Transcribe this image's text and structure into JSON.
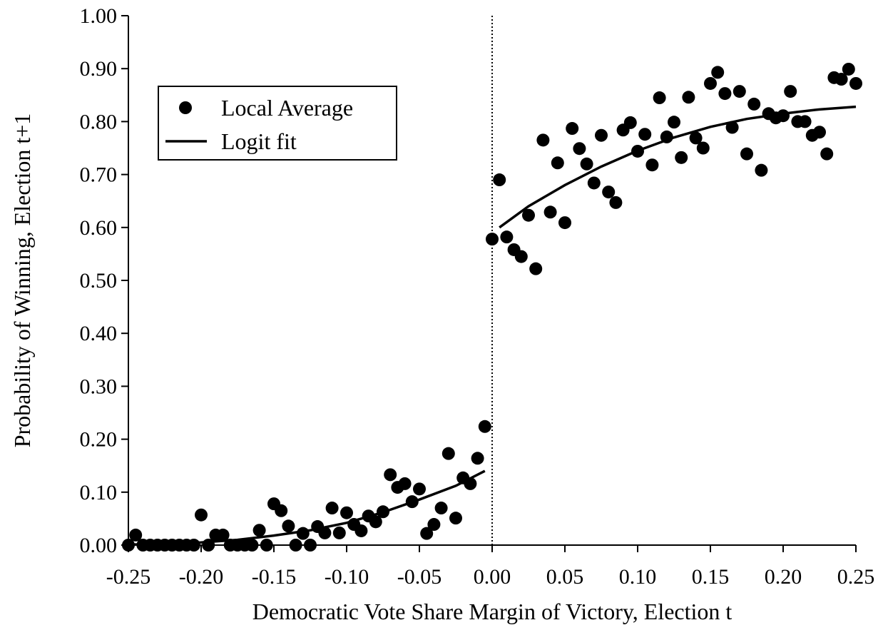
{
  "chart_data": {
    "type": "scatter",
    "xlabel": "Democratic Vote Share Margin of Victory, Election t",
    "ylabel": "Probability of Winning, Election t+1",
    "xlim": [
      -0.25,
      0.25
    ],
    "ylim": [
      0,
      1
    ],
    "xticks": [
      -0.25,
      {
        "value": -0.2,
        "label": "-0.20"
      },
      -0.15,
      {
        "value": -0.1,
        "label": "-0.10"
      },
      -0.05,
      {
        "value": 0,
        "label": "0.00"
      },
      0.05,
      {
        "value": 0.1,
        "label": "0.10"
      },
      0.15,
      {
        "value": 0.2,
        "label": "0.20"
      },
      0.25
    ],
    "yticks": [
      {
        "value": 0,
        "label": "0.00"
      },
      {
        "value": 0.1,
        "label": "0.10"
      },
      {
        "value": 0.2,
        "label": "0.20"
      },
      {
        "value": 0.3,
        "label": "0.30"
      },
      {
        "value": 0.4,
        "label": "0.40"
      },
      {
        "value": 0.5,
        "label": "0.50"
      },
      {
        "value": 0.6,
        "label": "0.60"
      },
      {
        "value": 0.7,
        "label": "0.70"
      },
      {
        "value": 0.8,
        "label": "0.80"
      },
      {
        "value": 0.9,
        "label": "0.90"
      },
      {
        "value": 1,
        "label": "1.00"
      }
    ],
    "vline": 0,
    "legend": "upper left",
    "series": [
      {
        "name": "Local Average",
        "type": "scatter",
        "color": "#000000",
        "x": [
          -0.25,
          -0.245,
          -0.24,
          -0.235,
          -0.23,
          -0.225,
          -0.22,
          -0.215,
          -0.21,
          -0.205,
          -0.2,
          -0.195,
          -0.19,
          -0.185,
          -0.18,
          -0.175,
          -0.17,
          -0.165,
          -0.16,
          -0.155,
          -0.15,
          -0.145,
          -0.14,
          -0.135,
          -0.13,
          -0.125,
          -0.12,
          -0.115,
          -0.11,
          -0.105,
          -0.1,
          -0.095,
          -0.09,
          -0.085,
          -0.08,
          -0.075,
          -0.07,
          -0.065,
          -0.06,
          -0.055,
          -0.05,
          -0.045,
          -0.04,
          -0.035,
          -0.03,
          -0.025,
          -0.02,
          -0.015,
          -0.01,
          -0.005,
          0,
          0.005,
          0.01,
          0.015,
          0.02,
          0.025,
          0.03,
          0.035,
          0.04,
          0.045,
          0.05,
          0.055,
          0.06,
          0.065,
          0.07,
          0.075,
          0.08,
          0.085,
          0.09,
          0.095,
          0.1,
          0.105,
          0.11,
          0.115,
          0.12,
          0.125,
          0.13,
          0.135,
          0.14,
          0.145,
          0.15,
          0.155,
          0.16,
          0.165,
          0.17,
          0.175,
          0.18,
          0.185,
          0.19,
          0.195,
          0.2,
          0.205,
          0.21,
          0.215,
          0.22,
          0.225,
          0.23,
          0.235,
          0.24,
          0.245,
          0.25
        ],
        "values": [
          0,
          0.019,
          0,
          0,
          0,
          0,
          0,
          0,
          0,
          0,
          0.057,
          0,
          0.019,
          0.019,
          0,
          0,
          0,
          0,
          0.028,
          0,
          0.078,
          0.065,
          0.036,
          0,
          0.022,
          0,
          0.035,
          0.023,
          0.07,
          0.023,
          0.061,
          0.039,
          0.027,
          0.055,
          0.044,
          0.063,
          0.133,
          0.109,
          0.116,
          0.082,
          0.106,
          0.022,
          0.039,
          0.07,
          0.173,
          0.051,
          0.127,
          0.116,
          0.164,
          0.224,
          0.578,
          0.69,
          0.582,
          0.558,
          0.545,
          0.623,
          0.522,
          0.765,
          0.629,
          0.722,
          0.609,
          0.787,
          0.749,
          0.72,
          0.684,
          0.774,
          0.667,
          0.647,
          0.784,
          0.798,
          0.744,
          0.776,
          0.718,
          0.845,
          0.771,
          0.799,
          0.732,
          0.846,
          0.769,
          0.75,
          0.872,
          0.893,
          0.853,
          0.789,
          0.857,
          0.739,
          0.833,
          0.708,
          0.815,
          0.807,
          0.811,
          0.857,
          0.8,
          0.8,
          0.774,
          0.78,
          0.739,
          0.883,
          0.88,
          0.899,
          0.872
        ]
      },
      {
        "name": "Logit fit",
        "type": "line",
        "color": "#000000",
        "x": [
          -0.25,
          -0.225,
          -0.2,
          -0.175,
          -0.15,
          -0.125,
          -0.1,
          -0.075,
          -0.05,
          -0.025,
          -0.005,
          0,
          0.005,
          0.025,
          0.05,
          0.075,
          0.1,
          0.125,
          0.15,
          0.175,
          0.2,
          0.225,
          0.25
        ],
        "values": [
          0.001,
          0.002,
          0.005,
          0.01,
          0.018,
          0.028,
          0.042,
          0.062,
          0.086,
          0.112,
          0.14,
          null,
          0.6,
          0.64,
          0.68,
          0.715,
          0.745,
          0.77,
          0.79,
          0.805,
          0.815,
          0.823,
          0.828
        ]
      }
    ]
  }
}
